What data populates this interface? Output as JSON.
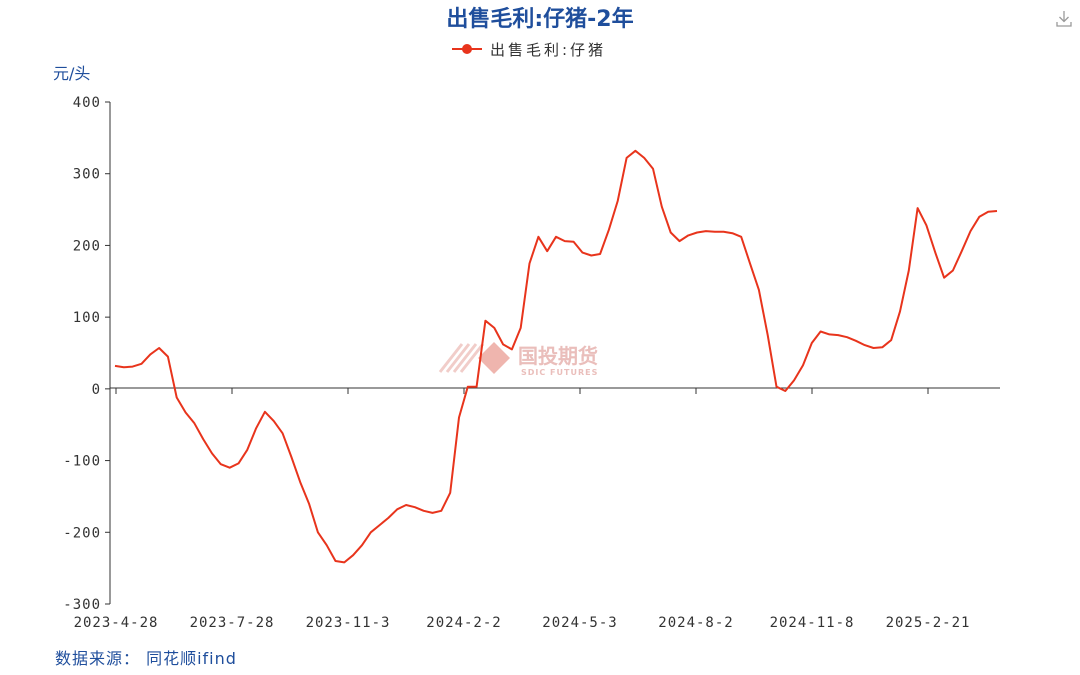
{
  "download_icon": "download-icon",
  "watermark": {
    "name": "国投期货",
    "sub": "SDIC FUTURES"
  },
  "source": "数据来源： 同花顺ifind",
  "chart_data": {
    "type": "line",
    "title": "出售毛利:仔猪-2年",
    "ylabel": "元/头",
    "xlabel": "",
    "ylim": [
      -300,
      400
    ],
    "yticks": [
      400,
      300,
      200,
      100,
      0,
      -100,
      -200,
      -300
    ],
    "ytick_labels": [
      "400",
      "300",
      "200",
      "100",
      "0",
      "-100",
      "-200",
      "-300"
    ],
    "xtick_labels": [
      "2023-4-28",
      "2023-7-28",
      "2023-11-3",
      "2024-2-2",
      "2024-5-3",
      "2024-8-2",
      "2024-11-8",
      "2025-2-21"
    ],
    "legend_position": "top-center",
    "grid": false,
    "colors": {
      "line": "#e8341c",
      "title": "#1f4e9c",
      "axis": "#333333"
    },
    "series": [
      {
        "name": "出售毛利:仔猪",
        "values": [
          32,
          30,
          31,
          35,
          48,
          57,
          45,
          -12,
          -33,
          -48,
          -70,
          -90,
          -105,
          -110,
          -104,
          -85,
          -55,
          -32,
          -45,
          -62,
          -95,
          -130,
          -160,
          -200,
          -218,
          -240,
          -242,
          -232,
          -218,
          -200,
          -190,
          -180,
          -168,
          -162,
          -165,
          -170,
          -173,
          -170,
          -145,
          -40,
          3,
          3,
          95,
          85,
          62,
          55,
          85,
          175,
          212,
          192,
          212,
          206,
          205,
          190,
          186,
          188,
          222,
          262,
          322,
          332,
          322,
          307,
          254,
          218,
          206,
          214,
          218,
          220,
          219,
          219,
          217,
          212,
          175,
          138,
          75,
          3,
          -3,
          12,
          33,
          64,
          80,
          76,
          75,
          72,
          67,
          61,
          57,
          58,
          68,
          108,
          165,
          252,
          228,
          190,
          155,
          165,
          192,
          220,
          240,
          247,
          248
        ]
      }
    ]
  }
}
